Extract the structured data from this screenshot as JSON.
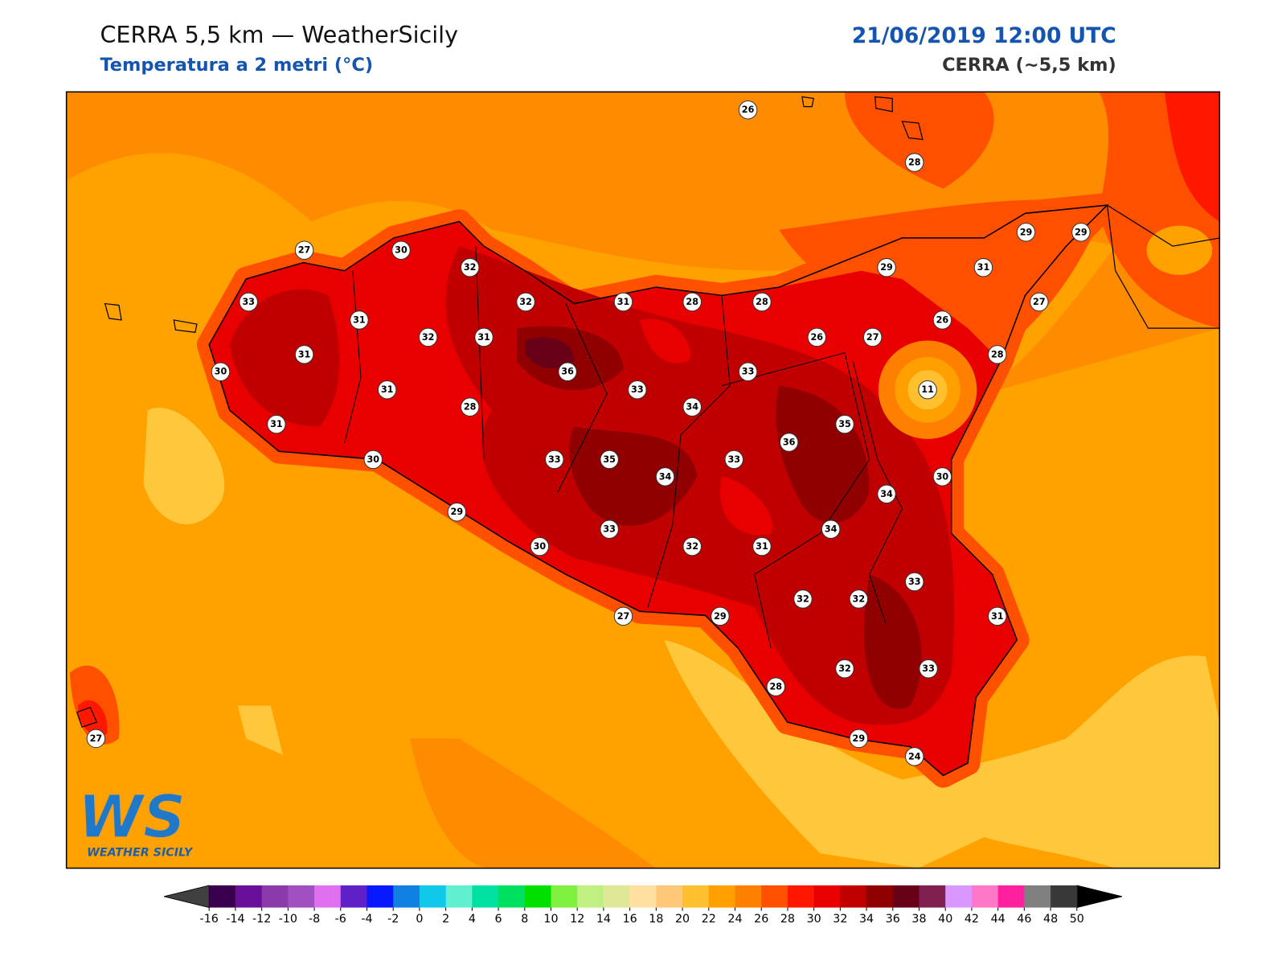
{
  "header": {
    "title": "CERRA 5,5 km — WeatherSicily",
    "subtitle": "Temperatura a 2 metri (°C)",
    "datetime": "21/06/2019 12:00 UTC",
    "model": "CERRA (~5,5 km)"
  },
  "logo": {
    "mark": "WS",
    "text": "WEATHER SICILY"
  },
  "stations": [
    26,
    28,
    27,
    30,
    32,
    29,
    29,
    33,
    32,
    31,
    28,
    28,
    29,
    31,
    27,
    31,
    32,
    31,
    31,
    26,
    27,
    26,
    28,
    30,
    36,
    33,
    31,
    33,
    11,
    28,
    34,
    31,
    35,
    36,
    30,
    33,
    35,
    33,
    34,
    30,
    34,
    29,
    33,
    34,
    30,
    32,
    31,
    33,
    32,
    32,
    27,
    29,
    31,
    32,
    33,
    28,
    27,
    29,
    24
  ],
  "colorbar": {
    "ticks": [
      -16,
      -14,
      -12,
      -10,
      -8,
      -6,
      -4,
      -2,
      0,
      2,
      4,
      6,
      8,
      10,
      12,
      14,
      16,
      18,
      20,
      22,
      24,
      26,
      28,
      30,
      32,
      34,
      36,
      38,
      40,
      42,
      44,
      46,
      48,
      50
    ],
    "colors": [
      "#3a0050",
      "#6a0f9a",
      "#8a3aaa",
      "#a050c0",
      "#e070f0",
      "#6020c8",
      "#0818ff",
      "#1080e0",
      "#10c8e8",
      "#60f0d0",
      "#00e0a0",
      "#00e060",
      "#00e000",
      "#80f040",
      "#c0f080",
      "#e0e898",
      "#ffe0a0",
      "#ffc878",
      "#ffc030",
      "#ffa000",
      "#ff8000",
      "#ff5000",
      "#ff1800",
      "#e80000",
      "#c00000",
      "#900000",
      "#680018",
      "#802050",
      "#d898ff",
      "#ff78c8",
      "#ff20a0",
      "#808080",
      "#383838"
    ],
    "under_color": "#404040",
    "over_color": "#000000"
  }
}
